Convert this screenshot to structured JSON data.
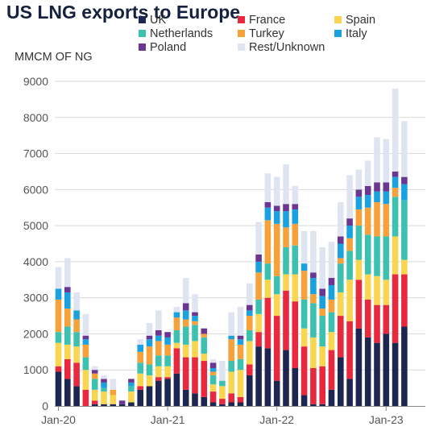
{
  "title": "US LNG exports to Europe",
  "chart_data": {
    "type": "bar",
    "stacked": true,
    "unit_label": "MMCM OF NG",
    "ylim": [
      0,
      9000
    ],
    "y_ticks": [
      0,
      1000,
      2000,
      3000,
      4000,
      5000,
      6000,
      7000,
      8000,
      9000
    ],
    "y_tick_labels": [
      "0",
      "1000",
      "2000",
      "3000",
      "4000",
      "5000",
      "6000",
      "7000",
      "8000",
      "9000"
    ],
    "x_ticks": [
      {
        "label": "Jan-20",
        "index": 0
      },
      {
        "label": "Jan-21",
        "index": 12
      },
      {
        "label": "Jan-22",
        "index": 24
      },
      {
        "label": "Jan-23",
        "index": 36
      }
    ],
    "grid": true,
    "legend_position": "top",
    "categories": [
      "2020-01",
      "2020-02",
      "2020-03",
      "2020-04",
      "2020-05",
      "2020-06",
      "2020-07",
      "2020-08",
      "2020-09",
      "2020-10",
      "2020-11",
      "2020-12",
      "2021-01",
      "2021-02",
      "2021-03",
      "2021-04",
      "2021-05",
      "2021-06",
      "2021-07",
      "2021-08",
      "2021-09",
      "2021-10",
      "2021-11",
      "2021-12",
      "2022-01",
      "2022-02",
      "2022-03",
      "2022-04",
      "2022-05",
      "2022-06",
      "2022-07",
      "2022-08",
      "2022-09",
      "2022-10",
      "2022-11",
      "2022-12",
      "2023-01",
      "2023-02",
      "2023-03",
      "2023-04"
    ],
    "series": [
      {
        "name": "UK",
        "color": "#1d2650",
        "values": [
          950,
          750,
          550,
          0,
          50,
          50,
          50,
          50,
          100,
          450,
          550,
          700,
          750,
          900,
          450,
          350,
          250,
          100,
          50,
          100,
          100,
          850,
          1650,
          1600,
          700,
          1550,
          1050,
          300,
          50,
          50,
          450,
          1350,
          750,
          2150,
          1900,
          1750,
          2000,
          1750,
          2200,
          0
        ]
      },
      {
        "name": "France",
        "color": "#e8283c",
        "values": [
          150,
          550,
          650,
          450,
          100,
          0,
          0,
          0,
          0,
          100,
          0,
          100,
          50,
          700,
          900,
          1000,
          1000,
          300,
          150,
          250,
          150,
          300,
          400,
          1400,
          1800,
          1650,
          1850,
          1350,
          1000,
          1050,
          1100,
          1150,
          1600,
          1350,
          1050,
          1050,
          800,
          1900,
          1450,
          0
        ]
      },
      {
        "name": "Spain",
        "color": "#f9d550",
        "values": [
          650,
          400,
          450,
          550,
          300,
          350,
          250,
          0,
          300,
          350,
          300,
          300,
          300,
          150,
          350,
          450,
          200,
          200,
          350,
          600,
          750,
          650,
          500,
          500,
          600,
          450,
          750,
          500,
          850,
          550,
          500,
          650,
          1150,
          550,
          700,
          800,
          700,
          1050,
          400,
          0
        ]
      },
      {
        "name": "Netherlands",
        "color": "#3cc1b0",
        "values": [
          300,
          500,
          400,
          350,
          300,
          100,
          0,
          0,
          150,
          300,
          300,
          300,
          300,
          350,
          500,
          450,
          450,
          250,
          150,
          300,
          300,
          300,
          400,
          450,
          500,
          750,
          800,
          800,
          950,
          850,
          550,
          800,
          800,
          950,
          1100,
          1100,
          1200,
          1100,
          1650,
          0
        ]
      },
      {
        "name": "Turkey",
        "color": "#f7a13a",
        "values": [
          900,
          500,
          350,
          350,
          150,
          0,
          150,
          0,
          0,
          300,
          500,
          400,
          300,
          350,
          200,
          100,
          100,
          100,
          0,
          600,
          400,
          400,
          750,
          1200,
          1450,
          550,
          600,
          800,
          250,
          200,
          350,
          150,
          350,
          450,
          750,
          950,
          900,
          250,
          0,
          0
        ]
      },
      {
        "name": "Italy",
        "color": "#1aa2e0",
        "values": [
          300,
          450,
          250,
          150,
          0,
          150,
          0,
          0,
          100,
          200,
          200,
          150,
          200,
          150,
          250,
          150,
          0,
          100,
          0,
          100,
          150,
          150,
          300,
          350,
          350,
          450,
          400,
          200,
          450,
          350,
          400,
          400,
          350,
          350,
          350,
          300,
          350,
          300,
          450,
          0
        ]
      },
      {
        "name": "Poland",
        "color": "#6b3592",
        "values": [
          0,
          150,
          0,
          100,
          100,
          100,
          0,
          100,
          100,
          0,
          100,
          150,
          150,
          0,
          200,
          100,
          150,
          150,
          0,
          0,
          100,
          150,
          200,
          150,
          150,
          200,
          150,
          0,
          150,
          200,
          200,
          200,
          200,
          200,
          250,
          250,
          250,
          150,
          200,
          0
        ]
      },
      {
        "name": "Rest/Unknown",
        "color": "#dfe4f1",
        "values": [
          600,
          800,
          500,
          600,
          100,
          100,
          300,
          0,
          0,
          150,
          350,
          550,
          0,
          150,
          700,
          500,
          0,
          100,
          550,
          650,
          800,
          600,
          900,
          800,
          800,
          1100,
          500,
          900,
          1150,
          1150,
          1000,
          950,
          1200,
          550,
          700,
          1250,
          1200,
          2300,
          1550,
          0
        ]
      }
    ]
  }
}
